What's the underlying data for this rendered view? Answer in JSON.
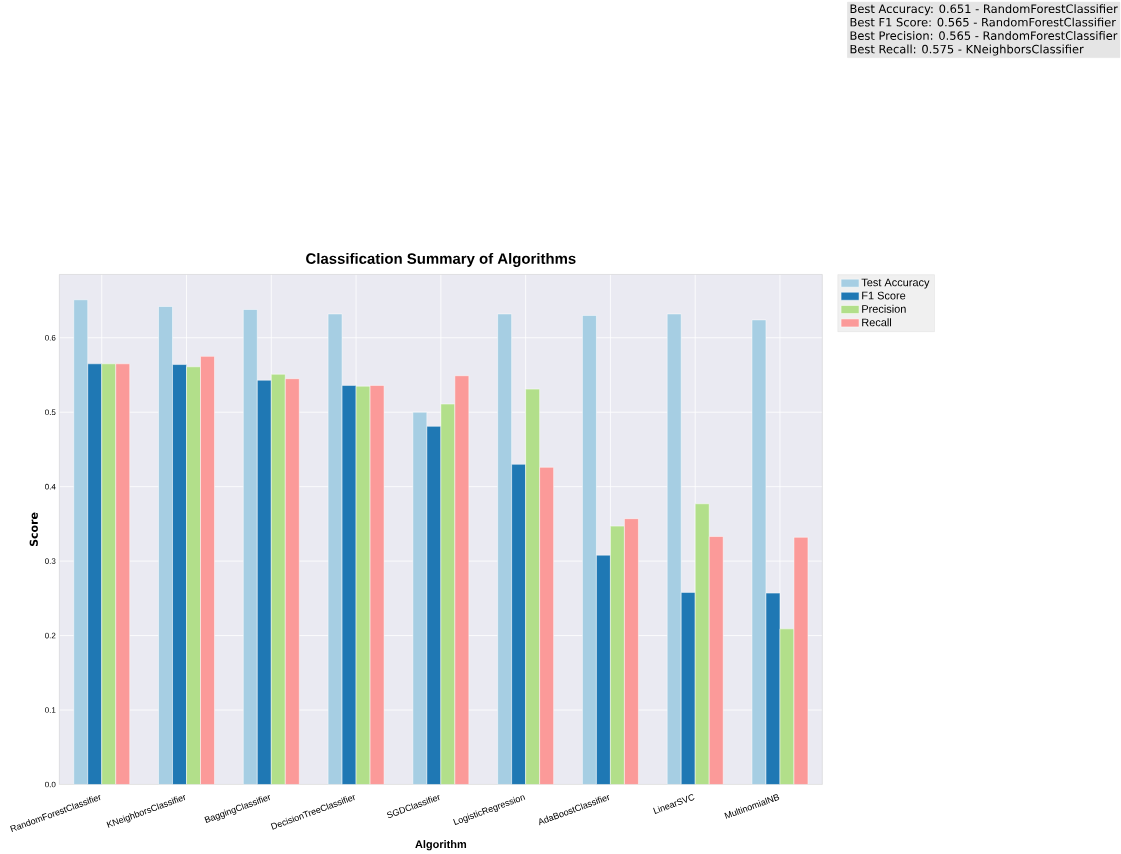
{
  "chart_data": {
    "type": "bar",
    "title": "Classification Summary of Algorithms",
    "xlabel": "Algorithm",
    "ylabel": "Score",
    "categories": [
      "RandomForestClassifier",
      "KNeighborsClassifier",
      "BaggingClassifier",
      "DecisionTreeClassifier",
      "SGDClassifier",
      "LogisticRegression",
      "AdaBoostClassifier",
      "LinearSVC",
      "MultinomialNB"
    ],
    "series": [
      {
        "name": "Test Accuracy",
        "color": "#a6cee3",
        "values": [
          0.651,
          0.642,
          0.638,
          0.632,
          0.5,
          0.632,
          0.63,
          0.632,
          0.624
        ]
      },
      {
        "name": "F1 Score",
        "color": "#1f78b4",
        "values": [
          0.565,
          0.564,
          0.543,
          0.536,
          0.481,
          0.43,
          0.308,
          0.258,
          0.257
        ]
      },
      {
        "name": "Precision",
        "color": "#b2df8a",
        "values": [
          0.565,
          0.561,
          0.551,
          0.535,
          0.511,
          0.531,
          0.347,
          0.377,
          0.209
        ]
      },
      {
        "name": "Recall",
        "color": "#fb9a99",
        "values": [
          0.565,
          0.575,
          0.545,
          0.536,
          0.549,
          0.426,
          0.357,
          0.333,
          0.332
        ]
      }
    ],
    "ylim": [
      0,
      0.685
    ],
    "yticks": [
      {
        "value": 0,
        "label": "0.0"
      },
      0.1,
      0.2,
      0.3,
      0.4,
      0.5,
      0.6
    ],
    "grid": true,
    "legend": "right",
    "annotations": [
      "Best Accuracy: 0.651 - RandomForestClassifier",
      "Best F1 Score: 0.565 - RandomForestClassifier",
      "Best Precision: 0.565 - RandomForestClassifier",
      "Best Recall: 0.575 - KNeighborsClassifier"
    ]
  }
}
